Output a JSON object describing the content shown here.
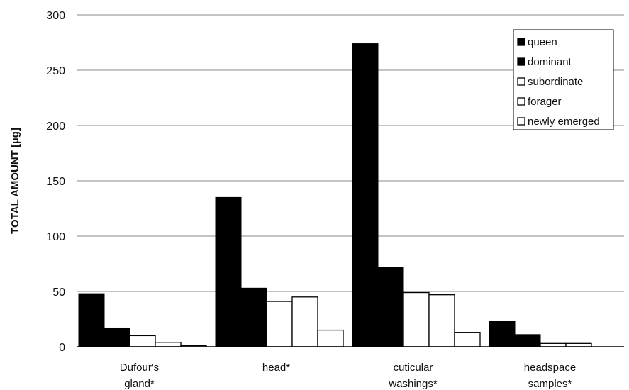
{
  "chart_data": {
    "type": "bar",
    "title": "",
    "ylabel": "TOTAL AMOUNT [µg]",
    "xlabel": "",
    "ylim": [
      0,
      300
    ],
    "yticks": [
      0,
      50,
      100,
      150,
      200,
      250,
      300
    ],
    "grid": true,
    "legend_position": "top-right",
    "categories": [
      [
        "Dufour's",
        "gland*"
      ],
      [
        "head*"
      ],
      [
        "cuticular",
        "washings*"
      ],
      [
        "headspace",
        "samples*"
      ]
    ],
    "series": [
      {
        "name": "queen",
        "color": "#000000",
        "values": [
          48,
          135,
          274,
          23
        ]
      },
      {
        "name": "dominant",
        "color": "#000000",
        "values": [
          17,
          53,
          72,
          11
        ]
      },
      {
        "name": "subordinate",
        "color": "#ffffff",
        "values": [
          10,
          41,
          49,
          3
        ]
      },
      {
        "name": "forager",
        "color": "#ffffff",
        "values": [
          4,
          45,
          47,
          3
        ]
      },
      {
        "name": "newly emerged",
        "color": "#ffffff",
        "values": [
          1,
          15,
          13,
          0
        ]
      }
    ]
  }
}
